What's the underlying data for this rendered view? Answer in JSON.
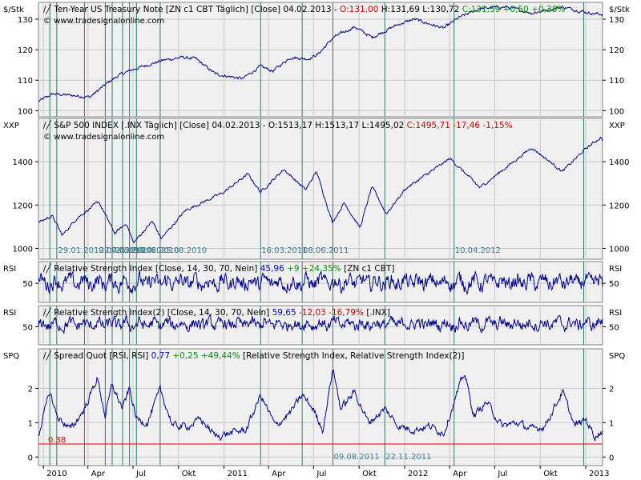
{
  "colors": {
    "line": "#00008b",
    "panel_bg": "#f0f0f0",
    "grid": "#c8c8c8",
    "event_line": "#2e7d6f",
    "event_text": "#3a7f8a",
    "red": "#cc0000",
    "green": "#009900",
    "blue": "#0000cc",
    "threshold": "#dd0000"
  },
  "chart_data": {
    "type": "line",
    "x_range": [
      "2009-12-22",
      "2013-02-04"
    ],
    "x_ticks": [
      {
        "label": "2010",
        "date": "2010-01-01"
      },
      {
        "label": "Apr",
        "date": "2010-04-01"
      },
      {
        "label": "Jul",
        "date": "2010-07-01"
      },
      {
        "label": "Okt",
        "date": "2010-10-01"
      },
      {
        "label": "2011",
        "date": "2011-01-01"
      },
      {
        "label": "Apr",
        "date": "2011-04-01"
      },
      {
        "label": "Jul",
        "date": "2011-07-01"
      },
      {
        "label": "Okt",
        "date": "2011-10-01"
      },
      {
        "label": "2012",
        "date": "2012-01-01"
      },
      {
        "label": "Apr",
        "date": "2012-04-01"
      },
      {
        "label": "Jul",
        "date": "2012-07-01"
      },
      {
        "label": "Okt",
        "date": "2012-10-01"
      },
      {
        "label": "2013",
        "date": "2013-01-01"
      }
    ],
    "event_dates": [
      "2010-01-14",
      "2010-01-28",
      "2010-03-25",
      "2010-05-06",
      "2010-05-20",
      "2010-06-10",
      "2010-06-24",
      "2010-07-08",
      "2010-08-25",
      "2011-03-16",
      "2011-06-08",
      "2011-08-09",
      "2011-11-22",
      "2012-04-10",
      "2012-12-28"
    ],
    "event_labels": [
      {
        "text": "29.01.2010",
        "panel": 1
      },
      {
        "text": "22.04.2010",
        "panel": 1
      },
      {
        "text": "07.05.2010",
        "panel": 1
      },
      {
        "text": "25.05.2010",
        "panel": 1
      },
      {
        "text": "30.06.2010",
        "panel": 1
      },
      {
        "text": "25.08.2010",
        "panel": 1
      },
      {
        "text": "16.03.2011",
        "panel": 1
      },
      {
        "text": "08.06.2011",
        "panel": 1
      },
      {
        "text": "10.04.2012",
        "panel": 1
      },
      {
        "text": "09.08.2011",
        "panel": 4
      },
      {
        "text": "22.11.2011",
        "panel": 4
      }
    ],
    "panels": [
      {
        "ylabel_left": "$/Stk",
        "ylabel_right": "$/Stk",
        "yrange": [
          98,
          135.5
        ],
        "ticks": [
          100,
          110,
          120,
          130
        ],
        "header": [
          {
            "text": "Ten-Year US Treasury Note [ZN c1 CBT  Täglich] [Close] 04.02.2013 - ",
            "color": "black"
          },
          {
            "text": "O:131,00 ",
            "color": "red"
          },
          {
            "text": "H:131,69 L:130,72 ",
            "color": "black"
          },
          {
            "text": "C:131,59 +0,50 +0,38%",
            "color": "green"
          }
        ],
        "watermark": "© www.tradesignalonline.com",
        "series": {
          "name": "ZN c1",
          "points": [
            [
              "2009-12-22",
              103.0
            ],
            [
              "2010-01-20",
              105.5
            ],
            [
              "2010-03-01",
              105.0
            ],
            [
              "2010-04-05",
              104.5
            ],
            [
              "2010-05-10",
              109.0
            ],
            [
              "2010-06-01",
              111.5
            ],
            [
              "2010-07-01",
              113.5
            ],
            [
              "2010-08-30",
              116.5
            ],
            [
              "2010-10-08",
              117.5
            ],
            [
              "2010-11-05",
              117.0
            ],
            [
              "2010-12-15",
              112.0
            ],
            [
              "2011-02-08",
              110.5
            ],
            [
              "2011-03-15",
              114.5
            ],
            [
              "2011-04-10",
              113.0
            ],
            [
              "2011-05-15",
              117.5
            ],
            [
              "2011-06-20",
              117.0
            ],
            [
              "2011-07-10",
              118.5
            ],
            [
              "2011-08-10",
              124.0
            ],
            [
              "2011-09-22",
              127.5
            ],
            [
              "2011-10-27",
              124.0
            ],
            [
              "2011-12-15",
              128.0
            ],
            [
              "2012-01-20",
              130.0
            ],
            [
              "2012-03-20",
              127.0
            ],
            [
              "2012-04-20",
              130.5
            ],
            [
              "2012-06-01",
              133.5
            ],
            [
              "2012-07-25",
              134.0
            ],
            [
              "2012-09-15",
              132.0
            ],
            [
              "2012-11-15",
              134.0
            ],
            [
              "2013-01-10",
              132.0
            ],
            [
              "2013-02-04",
              131.6
            ]
          ],
          "noise": 0.55
        }
      },
      {
        "ylabel_left": "XXP",
        "ylabel_right": "XXP",
        "yrange": [
          950,
          1600
        ],
        "ticks": [
          1000,
          1200,
          1400
        ],
        "header": [
          {
            "text": "S&P 500 INDEX [.INX  Täglich] [Close] 04.02.2013 - O:1513,17 H:1513,17 L:1495,02 ",
            "color": "black"
          },
          {
            "text": "C:1495,71 -17,46 -1,15%",
            "color": "red"
          }
        ],
        "watermark": "© www.tradesignalonline.com",
        "series": {
          "name": "S&P 500",
          "points": [
            [
              "2009-12-22",
              1120
            ],
            [
              "2010-01-19",
              1150
            ],
            [
              "2010-02-08",
              1060
            ],
            [
              "2010-03-10",
              1140
            ],
            [
              "2010-04-23",
              1215
            ],
            [
              "2010-05-25",
              1070
            ],
            [
              "2010-06-18",
              1115
            ],
            [
              "2010-07-02",
              1025
            ],
            [
              "2010-08-09",
              1125
            ],
            [
              "2010-08-27",
              1045
            ],
            [
              "2010-10-15",
              1175
            ],
            [
              "2010-12-31",
              1258
            ],
            [
              "2011-02-18",
              1343
            ],
            [
              "2011-03-16",
              1260
            ],
            [
              "2011-05-02",
              1365
            ],
            [
              "2011-06-15",
              1270
            ],
            [
              "2011-07-07",
              1355
            ],
            [
              "2011-08-08",
              1120
            ],
            [
              "2011-09-01",
              1210
            ],
            [
              "2011-10-03",
              1095
            ],
            [
              "2011-10-27",
              1285
            ],
            [
              "2011-11-25",
              1160
            ],
            [
              "2012-01-03",
              1275
            ],
            [
              "2012-04-02",
              1415
            ],
            [
              "2012-06-01",
              1280
            ],
            [
              "2012-09-14",
              1465
            ],
            [
              "2012-11-15",
              1355
            ],
            [
              "2013-01-02",
              1462
            ],
            [
              "2013-02-01",
              1513
            ],
            [
              "2013-02-04",
              1496
            ]
          ],
          "noise": 7
        }
      },
      {
        "ylabel_left": "RSI",
        "ylabel_right": "RSI",
        "yrange": [
          28,
          75
        ],
        "ticks": [
          50
        ],
        "header": [
          {
            "text": "Relative Strength Index [Close, 14, 30, 70, Nein] ",
            "color": "black"
          },
          {
            "text": "45,96 ",
            "color": "blue"
          },
          {
            "text": "+9 +24,35% ",
            "color": "green"
          },
          {
            "text": "[ZN c1 CBT]",
            "color": "black"
          }
        ],
        "series": {
          "name": "RSI ZN",
          "mean": 52,
          "noise": 9,
          "points": [
            [
              "2009-12-22",
              45
            ],
            [
              "2013-02-04",
              46
            ]
          ]
        }
      },
      {
        "ylabel_left": "RSI",
        "ylabel_right": "RSI",
        "yrange": [
          26,
          78
        ],
        "ticks": [
          50
        ],
        "header": [
          {
            "text": "Relative Strength Index(2) [Close, 14, 30, 70, Nein] ",
            "color": "black"
          },
          {
            "text": "59,65 ",
            "color": "blue"
          },
          {
            "text": "-12,03 -16,79% ",
            "color": "red"
          },
          {
            "text": "[.INX]",
            "color": "black"
          }
        ],
        "series": {
          "name": "RSI INX",
          "mean": 53,
          "noise": 8,
          "points": [
            [
              "2009-12-22",
              52
            ],
            [
              "2013-02-04",
              60
            ]
          ]
        }
      },
      {
        "ylabel_left": "SPQ",
        "ylabel_right": "SPQ",
        "yrange": [
          -0.25,
          3.15
        ],
        "ticks": [
          0,
          1,
          2
        ],
        "threshold": 0.38,
        "threshold_label": "0.38",
        "header": [
          {
            "text": "Spread Quot [RSI, RSI] ",
            "color": "black"
          },
          {
            "text": "0,77 ",
            "color": "blue"
          },
          {
            "text": "+0,25 +49,44% ",
            "color": "green"
          },
          {
            "text": "[Relative Strength Index, Relative Strength Index(2)]",
            "color": "black"
          }
        ],
        "series": {
          "name": "Spread Quot",
          "points": [
            [
              "2009-12-22",
              0.65
            ],
            [
              "2010-01-14",
              1.9
            ],
            [
              "2010-01-28",
              1.2
            ],
            [
              "2010-02-25",
              0.8
            ],
            [
              "2010-03-25",
              1.4
            ],
            [
              "2010-04-20",
              2.3
            ],
            [
              "2010-05-06",
              1.2
            ],
            [
              "2010-05-20",
              2.1
            ],
            [
              "2010-06-10",
              1.4
            ],
            [
              "2010-06-24",
              2.0
            ],
            [
              "2010-07-08",
              1.1
            ],
            [
              "2010-07-30",
              1.0
            ],
            [
              "2010-08-25",
              1.95
            ],
            [
              "2010-09-20",
              0.9
            ],
            [
              "2010-10-20",
              0.9
            ],
            [
              "2010-11-15",
              1.1
            ],
            [
              "2010-12-15",
              0.6
            ],
            [
              "2011-01-15",
              0.7
            ],
            [
              "2011-02-15",
              0.8
            ],
            [
              "2011-03-16",
              1.8
            ],
            [
              "2011-04-15",
              0.9
            ],
            [
              "2011-05-15",
              1.3
            ],
            [
              "2011-06-08",
              1.8
            ],
            [
              "2011-06-30",
              1.4
            ],
            [
              "2011-07-20",
              0.8
            ],
            [
              "2011-08-09",
              2.6
            ],
            [
              "2011-08-25",
              1.4
            ],
            [
              "2011-09-22",
              1.9
            ],
            [
              "2011-10-20",
              1.0
            ],
            [
              "2011-11-22",
              1.4
            ],
            [
              "2011-12-20",
              0.9
            ],
            [
              "2012-01-20",
              0.8
            ],
            [
              "2012-02-20",
              0.9
            ],
            [
              "2012-03-20",
              0.7
            ],
            [
              "2012-04-10",
              1.6
            ],
            [
              "2012-05-01",
              2.45
            ],
            [
              "2012-05-20",
              1.2
            ],
            [
              "2012-06-15",
              1.6
            ],
            [
              "2012-07-15",
              0.9
            ],
            [
              "2012-08-15",
              1.0
            ],
            [
              "2012-09-15",
              0.8
            ],
            [
              "2012-10-10",
              0.9
            ],
            [
              "2012-11-15",
              1.9
            ],
            [
              "2012-12-10",
              0.9
            ],
            [
              "2013-01-01",
              1.1
            ],
            [
              "2013-01-20",
              0.6
            ],
            [
              "2013-02-04",
              0.77
            ]
          ],
          "noise": 0.12
        }
      }
    ]
  }
}
